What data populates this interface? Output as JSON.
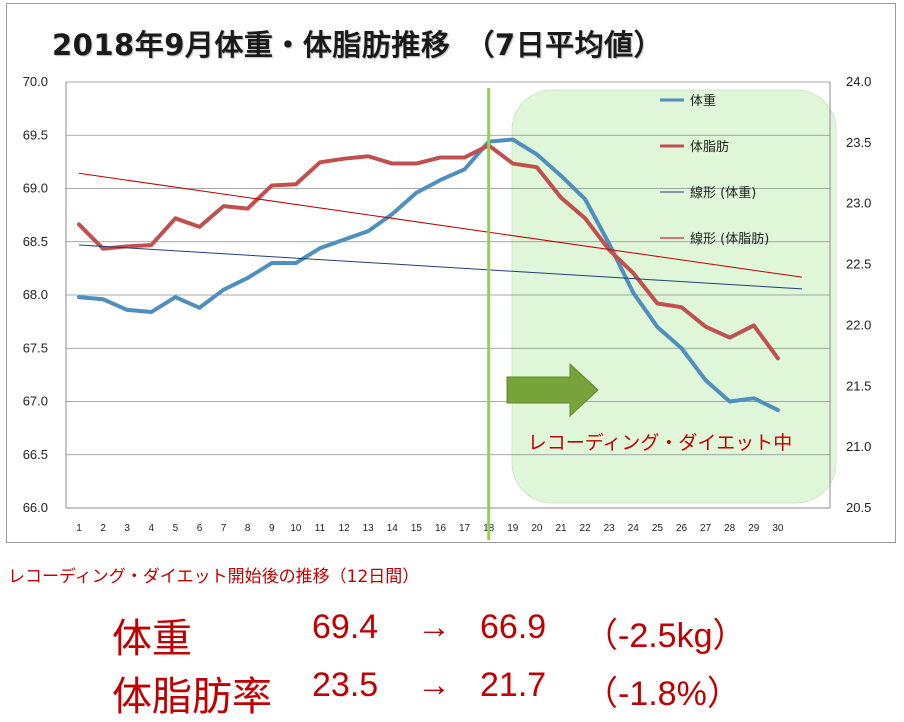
{
  "chart_data": {
    "type": "line",
    "title": "2018年9月体重・体脂肪推移　（7日平均値）",
    "x": [
      1,
      2,
      3,
      4,
      5,
      6,
      7,
      8,
      9,
      10,
      11,
      12,
      13,
      14,
      15,
      16,
      17,
      18,
      19,
      20,
      21,
      22,
      23,
      24,
      25,
      26,
      27,
      28,
      29,
      30
    ],
    "x_tick_labels": [
      "1",
      "2",
      "3",
      "4",
      "5",
      "6",
      "7",
      "8",
      "9",
      "10",
      "11",
      "12",
      "13",
      "14",
      "15",
      "16",
      "17",
      "18",
      "19",
      "20",
      "21",
      "22",
      "23",
      "24",
      "25",
      "26",
      "27",
      "28",
      "29",
      "30"
    ],
    "y_left": {
      "min": 66.0,
      "max": 70.0,
      "step": 0.5,
      "tick_labels": [
        "66.0",
        "66.5",
        "67.0",
        "67.5",
        "68.0",
        "68.5",
        "69.0",
        "69.5",
        "70.0"
      ]
    },
    "y_right": {
      "min": 20.5,
      "max": 24.0,
      "step": 0.5,
      "tick_labels": [
        "20.5",
        "21.0",
        "21.5",
        "22.0",
        "22.5",
        "23.0",
        "23.5",
        "24.0"
      ]
    },
    "grid": true,
    "legend_position": "top-right",
    "series": [
      {
        "name": "体重",
        "axis": "left",
        "color": "#4f8fbd",
        "values": [
          67.98,
          67.96,
          67.86,
          67.84,
          67.98,
          67.88,
          68.05,
          68.16,
          68.3,
          68.3,
          68.44,
          68.52,
          68.6,
          68.76,
          68.96,
          69.08,
          69.18,
          69.44,
          69.46,
          69.32,
          69.12,
          68.9,
          68.48,
          68.02,
          67.7,
          67.5,
          67.2,
          67.0,
          67.03,
          66.92
        ]
      },
      {
        "name": "体脂肪",
        "axis": "right",
        "color": "#c0504d",
        "values": [
          22.83,
          22.63,
          22.65,
          22.66,
          22.88,
          22.81,
          22.98,
          22.96,
          23.15,
          23.16,
          23.34,
          23.37,
          23.39,
          23.33,
          23.33,
          23.38,
          23.38,
          23.48,
          23.33,
          23.3,
          23.05,
          22.88,
          22.62,
          22.43,
          22.18,
          22.15,
          21.99,
          21.9,
          22.0,
          21.73
        ]
      },
      {
        "name": "線形 (体重)",
        "axis": "left",
        "color": "#1f3f7a",
        "trend_of": "体重",
        "start": [
          1,
          68.47
        ],
        "end": [
          30,
          68.05
        ]
      },
      {
        "name": "線形 (体脂肪)",
        "axis": "right",
        "color": "#c00000",
        "trend_of": "体脂肪",
        "start": [
          1,
          23.25
        ],
        "end": [
          30,
          22.38
        ]
      }
    ],
    "annotations": {
      "start_marker_x": 18,
      "zone_label": "レコーディング・ダイエット中"
    }
  },
  "summary": {
    "heading": "レコーディング・ダイエット開始後の推移（12日間）",
    "rows": [
      {
        "label": "体重",
        "from": "69.4",
        "arrow": "→",
        "to": "66.9",
        "change": "（-2.5kg）"
      },
      {
        "label": "体脂肪率",
        "from": "23.5",
        "arrow": "→",
        "to": "21.7",
        "change": "（-1.8%）"
      }
    ]
  },
  "colors": {
    "weight": "#4f8fbd",
    "fat": "#c00000",
    "zone": "#dff6d9",
    "marker": "#92d050",
    "arrow": "#77a33a"
  }
}
